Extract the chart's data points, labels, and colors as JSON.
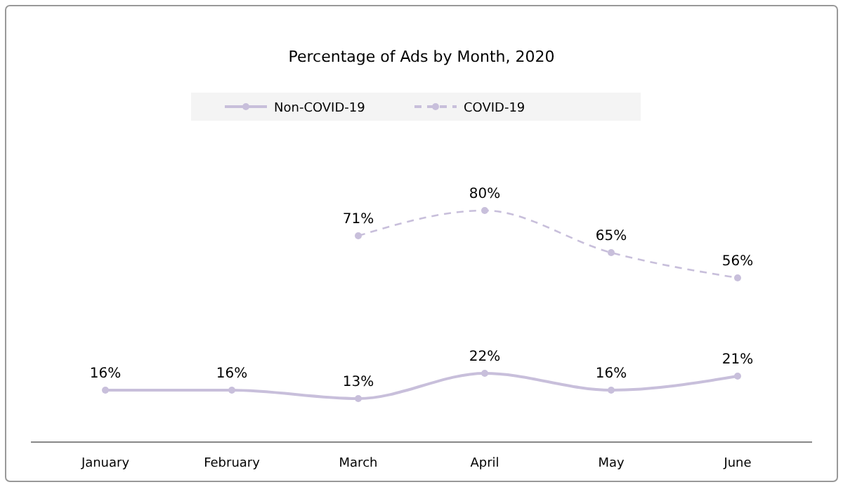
{
  "chart_data": {
    "type": "line",
    "subtitle": "Percentage of Ads by Month, 2020",
    "categories": [
      "January",
      "February",
      "March",
      "April",
      "May",
      "June"
    ],
    "series": [
      {
        "name": "Non-COVID-19",
        "color": "#c8bfdb",
        "line_style": "solid",
        "values": [
          16,
          16,
          13,
          22,
          16,
          21
        ],
        "value_labels": [
          "16%",
          "16%",
          "13%",
          "22%",
          "16%",
          "21%"
        ]
      },
      {
        "name": "COVID-19",
        "color": "#c8bfdb",
        "line_style": "dashed",
        "values": [
          null,
          null,
          71,
          80,
          65,
          56
        ],
        "value_labels": [
          null,
          null,
          "71%",
          "80%",
          "65%",
          "56%"
        ]
      }
    ],
    "marker": "circle",
    "legend": "top"
  }
}
